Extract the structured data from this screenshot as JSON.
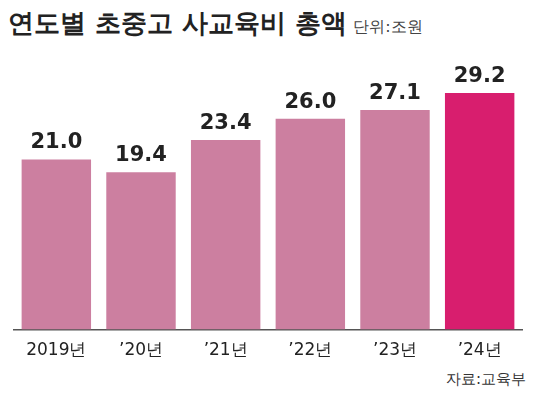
{
  "chart_data": {
    "type": "bar",
    "title": "연도별 초중고 사교육비 총액",
    "subtitle": "단위:조원",
    "source": "자료:교육부",
    "categories": [
      "2019년",
      "’20년",
      "’21년",
      "’22년",
      "’23년",
      "’24년"
    ],
    "values": [
      21.0,
      19.4,
      23.4,
      26.0,
      27.1,
      29.2
    ],
    "value_labels": [
      "21.0",
      "19.4",
      "23.4",
      "26.0",
      "27.1",
      "29.2"
    ],
    "colors": [
      "#cc7fa0",
      "#cc7fa0",
      "#cc7fa0",
      "#cc7fa0",
      "#cc7fa0",
      "#d81e6e"
    ],
    "ylim": [
      0,
      34
    ],
    "grid": false,
    "data_labels": true,
    "tick_labels": "x"
  }
}
